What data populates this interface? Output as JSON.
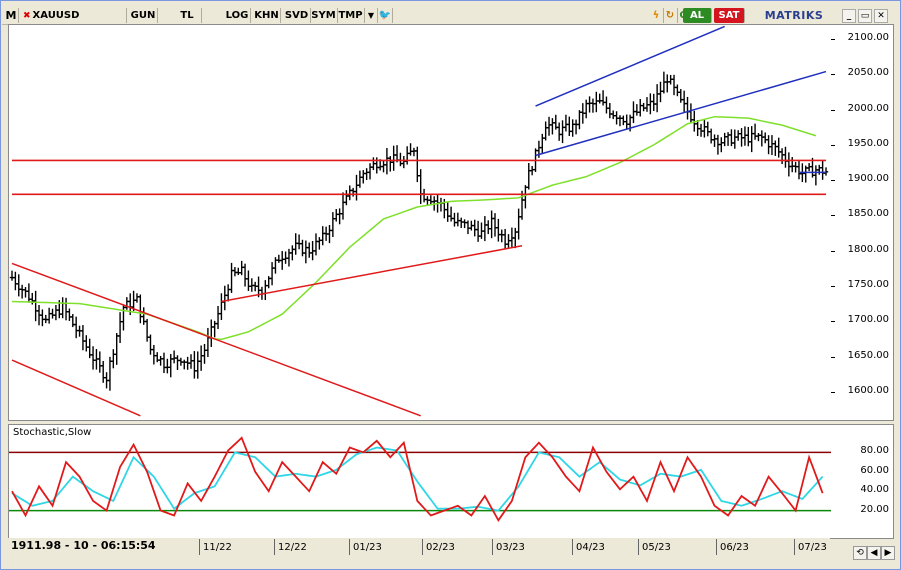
{
  "toolbar": {
    "m_label": "M",
    "symbol": "XAUUSD",
    "period": "GUN",
    "currency": "TL",
    "log": "LOG",
    "khn": "KHN",
    "svd": "SVD",
    "sym": "SYM",
    "tmp": "TMP",
    "buy": "AL",
    "sell": "SAT",
    "c_label": "C",
    "brand": "MATRIKS",
    "icons": [
      "arrow-down-icon",
      "twitter-icon",
      "lightning-icon",
      "refresh-icon",
      "minimize-icon",
      "restore-icon",
      "close-icon"
    ]
  },
  "status": {
    "value": "1911.98 - 10 - 06:15:54"
  },
  "xaxis": [
    "11/22",
    "12/22",
    "01/23",
    "02/23",
    "03/23",
    "04/23",
    "05/23",
    "06/23",
    "07/23"
  ],
  "stoch_title": "Stochastic,Slow",
  "colors": {
    "price": "#000000",
    "ma": "#7ee02a",
    "red": "#e01a1a",
    "blue": "#1f2fbf",
    "stoch_k": "#e01a1a",
    "stoch_d": "#2fd6e6",
    "stoch_upper": "#8b0000",
    "stoch_lower": "#0a8a0a"
  },
  "chart_data": [
    {
      "type": "ohlc",
      "title": "XAUUSD",
      "ylim": [
        1560,
        2120
      ],
      "yticks": [
        1600,
        1650,
        1700,
        1750,
        1800,
        1850,
        1900,
        1950,
        2000,
        2050,
        2100
      ],
      "xlabels": [
        "11/22",
        "12/22",
        "01/23",
        "02/23",
        "03/23",
        "04/23",
        "05/23",
        "06/23",
        "07/23"
      ],
      "anchors": [
        [
          0,
          1762
        ],
        [
          5,
          1735
        ],
        [
          10,
          1700
        ],
        [
          15,
          1720
        ],
        [
          20,
          1680
        ],
        [
          25,
          1640
        ],
        [
          28,
          1620
        ],
        [
          33,
          1720
        ],
        [
          37,
          1730
        ],
        [
          41,
          1660
        ],
        [
          45,
          1640
        ],
        [
          50,
          1648
        ],
        [
          54,
          1635
        ],
        [
          57,
          1660
        ],
        [
          61,
          1710
        ],
        [
          65,
          1765
        ],
        [
          68,
          1770
        ],
        [
          71,
          1745
        ],
        [
          74,
          1745
        ],
        [
          79,
          1790
        ],
        [
          84,
          1805
        ],
        [
          88,
          1800
        ],
        [
          92,
          1818
        ],
        [
          96,
          1850
        ],
        [
          100,
          1880
        ],
        [
          104,
          1910
        ],
        [
          108,
          1925
        ],
        [
          112,
          1930
        ],
        [
          116,
          1925
        ],
        [
          119,
          1945
        ],
        [
          121,
          1880
        ],
        [
          124,
          1875
        ],
        [
          127,
          1865
        ],
        [
          131,
          1840
        ],
        [
          135,
          1835
        ],
        [
          139,
          1825
        ],
        [
          142,
          1840
        ],
        [
          146,
          1815
        ],
        [
          149,
          1830
        ],
        [
          152,
          1895
        ],
        [
          155,
          1935
        ],
        [
          158,
          1980
        ],
        [
          162,
          1970
        ],
        [
          166,
          1975
        ],
        [
          170,
          2005
        ],
        [
          174,
          2010
        ],
        [
          178,
          1995
        ],
        [
          182,
          1985
        ],
        [
          186,
          2000
        ],
        [
          190,
          2010
        ],
        [
          194,
          2045
        ],
        [
          198,
          2010
        ],
        [
          202,
          1985
        ],
        [
          206,
          1965
        ],
        [
          210,
          1955
        ],
        [
          214,
          1960
        ],
        [
          218,
          1960
        ],
        [
          222,
          1960
        ],
        [
          226,
          1945
        ],
        [
          230,
          1925
        ],
        [
          234,
          1910
        ],
        [
          238,
          1915
        ],
        [
          241,
          1912
        ]
      ],
      "ma": [
        [
          0,
          1728
        ],
        [
          20,
          1725
        ],
        [
          40,
          1710
        ],
        [
          55,
          1685
        ],
        [
          61,
          1673
        ],
        [
          70,
          1685
        ],
        [
          80,
          1710
        ],
        [
          90,
          1755
        ],
        [
          100,
          1805
        ],
        [
          110,
          1845
        ],
        [
          120,
          1862
        ],
        [
          130,
          1870
        ],
        [
          140,
          1872
        ],
        [
          150,
          1875
        ],
        [
          160,
          1893
        ],
        [
          170,
          1905
        ],
        [
          180,
          1925
        ],
        [
          190,
          1950
        ],
        [
          200,
          1980
        ],
        [
          208,
          1990
        ],
        [
          218,
          1988
        ],
        [
          228,
          1978
        ],
        [
          238,
          1963
        ]
      ],
      "lines": [
        {
          "color": "red",
          "width": 1.6,
          "points": [
            [
              0,
              1928
            ],
            [
              241,
              1928
            ]
          ]
        },
        {
          "color": "red",
          "width": 1.6,
          "points": [
            [
              0,
              1880
            ],
            [
              241,
              1880
            ]
          ]
        },
        {
          "color": "red",
          "width": 1.5,
          "points": [
            [
              0,
              1782
            ],
            [
              121,
              1566
            ]
          ]
        },
        {
          "color": "red",
          "width": 1.5,
          "points": [
            [
              0,
              1645
            ],
            [
              38,
              1566
            ]
          ]
        },
        {
          "color": "red",
          "width": 1.5,
          "points": [
            [
              62,
              1728
            ],
            [
              151,
              1807
            ]
          ]
        },
        {
          "color": "blue",
          "width": 1.5,
          "points": [
            [
              155,
              2005
            ],
            [
              211,
              2118
            ]
          ]
        },
        {
          "color": "blue",
          "width": 1.5,
          "points": [
            [
              155,
              1935
            ],
            [
              241,
              2054
            ]
          ]
        },
        {
          "color": "blue",
          "width": 1.5,
          "points": [
            [
              233,
              1911
            ],
            [
              241,
              1911
            ]
          ]
        }
      ]
    },
    {
      "type": "line",
      "title": "Stochastic,Slow",
      "ylim": [
        0,
        100
      ],
      "yticks": [
        20,
        40,
        60,
        80
      ],
      "levels": [
        80,
        20
      ],
      "series": [
        {
          "values": [
            [
              0,
              40
            ],
            [
              4,
              15
            ],
            [
              8,
              45
            ],
            [
              12,
              25
            ],
            [
              16,
              70
            ],
            [
              20,
              55
            ],
            [
              24,
              30
            ],
            [
              28,
              20
            ],
            [
              32,
              65
            ],
            [
              36,
              88
            ],
            [
              40,
              60
            ],
            [
              44,
              20
            ],
            [
              48,
              15
            ],
            [
              52,
              48
            ],
            [
              56,
              30
            ],
            [
              60,
              55
            ],
            [
              64,
              82
            ],
            [
              68,
              95
            ],
            [
              72,
              60
            ],
            [
              76,
              40
            ],
            [
              80,
              70
            ],
            [
              84,
              55
            ],
            [
              88,
              40
            ],
            [
              92,
              70
            ],
            [
              96,
              58
            ],
            [
              100,
              85
            ],
            [
              104,
              80
            ],
            [
              108,
              92
            ],
            [
              112,
              75
            ],
            [
              116,
              90
            ],
            [
              120,
              30
            ],
            [
              124,
              15
            ],
            [
              128,
              20
            ],
            [
              132,
              25
            ],
            [
              136,
              15
            ],
            [
              140,
              35
            ],
            [
              144,
              10
            ],
            [
              148,
              30
            ],
            [
              152,
              75
            ],
            [
              156,
              90
            ],
            [
              160,
              75
            ],
            [
              164,
              55
            ],
            [
              168,
              40
            ],
            [
              172,
              85
            ],
            [
              176,
              60
            ],
            [
              180,
              42
            ],
            [
              184,
              55
            ],
            [
              188,
              30
            ],
            [
              192,
              70
            ],
            [
              196,
              40
            ],
            [
              200,
              75
            ],
            [
              204,
              55
            ],
            [
              208,
              25
            ],
            [
              212,
              15
            ],
            [
              216,
              35
            ],
            [
              220,
              25
            ],
            [
              224,
              55
            ],
            [
              228,
              38
            ],
            [
              232,
              20
            ],
            [
              236,
              75
            ],
            [
              240,
              38
            ]
          ]
        },
        {
          "values": [
            [
              0,
              38
            ],
            [
              6,
              25
            ],
            [
              12,
              30
            ],
            [
              18,
              55
            ],
            [
              24,
              40
            ],
            [
              30,
              30
            ],
            [
              36,
              75
            ],
            [
              42,
              55
            ],
            [
              48,
              22
            ],
            [
              54,
              38
            ],
            [
              60,
              45
            ],
            [
              66,
              80
            ],
            [
              72,
              75
            ],
            [
              78,
              55
            ],
            [
              84,
              58
            ],
            [
              90,
              55
            ],
            [
              96,
              62
            ],
            [
              102,
              78
            ],
            [
              108,
              85
            ],
            [
              114,
              82
            ],
            [
              120,
              50
            ],
            [
              126,
              22
            ],
            [
              132,
              22
            ],
            [
              138,
              24
            ],
            [
              144,
              20
            ],
            [
              150,
              45
            ],
            [
              156,
              80
            ],
            [
              162,
              75
            ],
            [
              168,
              55
            ],
            [
              174,
              70
            ],
            [
              180,
              52
            ],
            [
              186,
              46
            ],
            [
              192,
              58
            ],
            [
              198,
              55
            ],
            [
              204,
              62
            ],
            [
              210,
              30
            ],
            [
              216,
              25
            ],
            [
              222,
              32
            ],
            [
              228,
              40
            ],
            [
              234,
              32
            ],
            [
              240,
              55
            ]
          ]
        }
      ]
    }
  ]
}
